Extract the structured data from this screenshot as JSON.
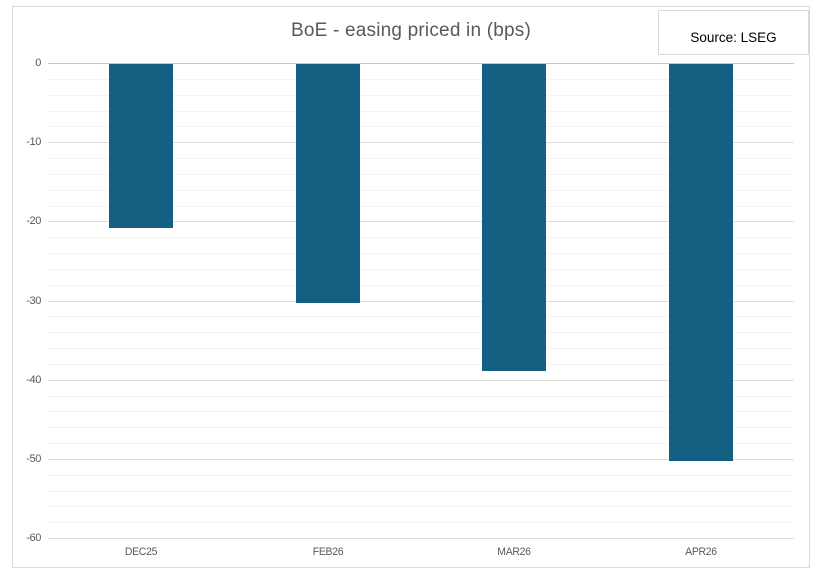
{
  "chart": {
    "source_label": "Source: LSEG",
    "colors": {
      "bar": "#156082",
      "title_text": "#595959",
      "axis_text": "#595959",
      "source_text": "#000000",
      "major_gridline": "#DCDCDC",
      "minor_gridline": "#F3F3F3",
      "zero_axis_line": "#C6C6C6",
      "frame_border": "#D9D9D9",
      "background": "#FFFFFF"
    }
  },
  "chart_data": {
    "type": "bar",
    "title": "BoE - easing priced in (bps)",
    "categories": [
      "DEC25",
      "FEB26",
      "MAR26",
      "APR26"
    ],
    "values": [
      -20.8,
      -30.3,
      -38.9,
      -50.3
    ],
    "xlabel": "",
    "ylabel": "",
    "ylim": [
      -60,
      0
    ],
    "y_major_step": 10,
    "y_minor_step": 2,
    "y_tick_labels": [
      "0",
      "-10",
      "-20",
      "-30",
      "-40",
      "-50",
      "-60"
    ],
    "grid": true,
    "legend_position": "none",
    "annotations": [
      "Source: LSEG"
    ]
  }
}
